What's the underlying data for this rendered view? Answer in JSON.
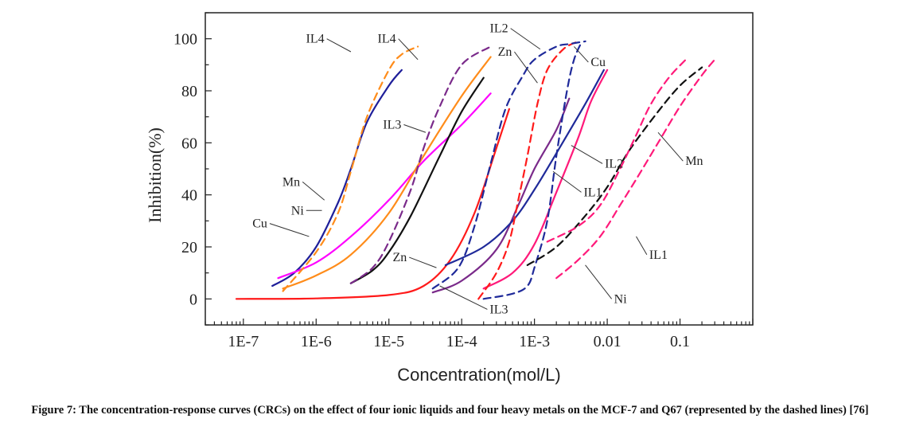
{
  "caption": "Figure 7: The concentration-response curves (CRCs) on the effect of four ionic liquids and four heavy metals on the MCF-7 and Q67 (represented by the dashed lines) [76]",
  "chart_data": {
    "type": "line",
    "title": "",
    "xlabel": "Concentration(mol/L)",
    "ylabel": "Inhibition(%)",
    "x_scale": "log",
    "xlim": [
      3e-08,
      1
    ],
    "ylim": [
      -10,
      110
    ],
    "x_ticks": [
      1e-07,
      1e-06,
      1e-05,
      0.0001,
      0.001,
      0.01,
      0.1
    ],
    "x_tick_labels": [
      "1E-7",
      "1E-6",
      "1E-5",
      "1E-4",
      "1E-3",
      "0.01",
      "0.1"
    ],
    "y_ticks": [
      0,
      20,
      40,
      60,
      80,
      100
    ],
    "y_tick_labels": [
      "0",
      "20",
      "40",
      "60",
      "80",
      "100"
    ],
    "grid": false,
    "series": [
      {
        "name": "Cu",
        "color": "#1f1f9a",
        "dashed": false,
        "x": [
          2.5e-07,
          5e-07,
          1e-06,
          2e-06,
          3e-06,
          5e-06,
          1e-05,
          1.5e-05
        ],
        "y": [
          5,
          10,
          20,
          37,
          50,
          68,
          82,
          88
        ]
      },
      {
        "name": "Mn",
        "color": "#ff00ff",
        "dashed": false,
        "x": [
          3e-07,
          1e-06,
          3e-06,
          1e-05,
          3e-05,
          0.0001,
          0.00025
        ],
        "y": [
          8,
          14,
          24,
          38,
          53,
          67,
          79
        ]
      },
      {
        "name": "IL4",
        "color": "#ff8c1a",
        "dashed": false,
        "x": [
          3.5e-07,
          1e-06,
          3e-06,
          1e-05,
          3e-05,
          0.0001,
          0.00025
        ],
        "y": [
          4,
          9,
          17,
          33,
          55,
          78,
          93
        ]
      },
      {
        "name": "Ni",
        "color": "#111111",
        "dashed": false,
        "x": [
          3e-06,
          6e-06,
          1e-05,
          2e-05,
          5e-05,
          0.0001,
          0.0002
        ],
        "y": [
          6,
          11,
          18,
          32,
          55,
          72,
          85
        ]
      },
      {
        "name": "Zn",
        "color": "#ff1a1a",
        "dashed": false,
        "x": [
          8e-08,
          1e-06,
          1e-05,
          3e-05,
          7e-05,
          0.00015,
          0.0003,
          0.00045
        ],
        "y": [
          0,
          0.2,
          1.5,
          5,
          15,
          33,
          58,
          73
        ]
      },
      {
        "name": "IL3",
        "color": "#7a2a8a",
        "dashed": false,
        "x": [
          4e-05,
          0.0001,
          0.0003,
          0.0006,
          0.001,
          0.002,
          0.003
        ],
        "y": [
          2.5,
          7,
          19,
          36,
          50,
          65,
          77
        ]
      },
      {
        "name": "IL2",
        "color": "#1f2a9a",
        "dashed": false,
        "x": [
          6e-05,
          0.0002,
          0.0005,
          0.001,
          0.002,
          0.005,
          0.009
        ],
        "y": [
          13,
          20,
          30,
          42,
          56,
          75,
          88
        ]
      },
      {
        "name": "IL1",
        "color": "#ff1a7a",
        "dashed": false,
        "x": [
          0.0002,
          0.0005,
          0.001,
          0.002,
          0.004,
          0.006,
          0.01
        ],
        "y": [
          4,
          10,
          21,
          41,
          62,
          76,
          88
        ]
      },
      {
        "name": "IL4",
        "color": "#ff8c1a",
        "dashed": true,
        "x": [
          3.5e-07,
          1e-06,
          2e-06,
          3e-06,
          5e-06,
          1e-05,
          1.5e-05,
          2.5e-05
        ],
        "y": [
          3,
          18,
          33,
          49,
          70,
          88,
          94,
          97
        ]
      },
      {
        "name": "IL3",
        "color": "#7a2a8a",
        "dashed": true,
        "x": [
          3e-06,
          6e-06,
          1e-05,
          2e-05,
          3e-05,
          5e-05,
          0.0001,
          0.00025
        ],
        "y": [
          6,
          12,
          22,
          42,
          58,
          74,
          90,
          97
        ]
      },
      {
        "name": "Zn",
        "color": "#ff1a1a",
        "dashed": true,
        "x": [
          0.00017,
          0.0003,
          0.00045,
          0.0006,
          0.0008,
          0.0011,
          0.0015,
          0.0025,
          0.004
        ],
        "y": [
          0,
          10,
          22,
          38,
          55,
          75,
          88,
          96,
          99
        ]
      },
      {
        "name": "IL2",
        "color": "#1f2a9a",
        "dashed": true,
        "x": [
          4e-05,
          9e-05,
          0.00015,
          0.00025,
          0.0004,
          0.0007,
          0.001,
          0.002,
          0.003,
          0.005
        ],
        "y": [
          4,
          12,
          28,
          52,
          73,
          86,
          92,
          97,
          98,
          99
        ]
      },
      {
        "name": "Cu",
        "color": "#1f2a9a",
        "dashed": true,
        "x": [
          0.0002,
          0.0005,
          0.0008,
          0.001,
          0.0015,
          0.002,
          0.0028,
          0.0035,
          0.0045
        ],
        "y": [
          0,
          2,
          5,
          12,
          30,
          55,
          80,
          92,
          99
        ]
      },
      {
        "name": "Ni",
        "color": "#111111",
        "dashed": true,
        "x": [
          0.0008,
          0.002,
          0.005,
          0.01,
          0.02,
          0.05,
          0.1,
          0.2
        ],
        "y": [
          13,
          20,
          32,
          43,
          57,
          72,
          82,
          89
        ]
      },
      {
        "name": "Mn",
        "color": "#ff1a7a",
        "dashed": true,
        "x": [
          0.0015,
          0.004,
          0.008,
          0.015,
          0.025,
          0.04,
          0.07,
          0.12
        ],
        "y": [
          22,
          28,
          36,
          50,
          63,
          75,
          85,
          92
        ]
      },
      {
        "name": "IL1",
        "color": "#ff1a7a",
        "dashed": true,
        "x": [
          0.002,
          0.004,
          0.008,
          0.015,
          0.025,
          0.05,
          0.1,
          0.2,
          0.3
        ],
        "y": [
          8,
          15,
          24,
          36,
          46,
          60,
          74,
          86,
          92
        ]
      }
    ],
    "annotations": [
      {
        "text": "Cu",
        "x": 2.3e-07,
        "y": 29
      },
      {
        "text": "Mn",
        "x": 6.5e-07,
        "y": 45
      },
      {
        "text": "Ni",
        "x": 7.3e-07,
        "y": 34
      },
      {
        "text": "IL4",
        "x": 1.4e-06,
        "y": 100
      },
      {
        "text": "IL4",
        "x": 1.35e-05,
        "y": 100
      },
      {
        "text": "IL3",
        "x": 1.6e-05,
        "y": 67
      },
      {
        "text": "Zn",
        "x": 1.9e-05,
        "y": 16
      },
      {
        "text": "IL2",
        "x": 0.00047,
        "y": 104
      },
      {
        "text": "Zn",
        "x": 0.00053,
        "y": 95
      },
      {
        "text": "Cu",
        "x": 0.0055,
        "y": 91
      },
      {
        "text": "IL2",
        "x": 0.0086,
        "y": 52
      },
      {
        "text": "IL1",
        "x": 0.0044,
        "y": 41
      },
      {
        "text": "Mn",
        "x": 0.11,
        "y": 53
      },
      {
        "text": "IL1",
        "x": 0.035,
        "y": 17
      },
      {
        "text": "Ni",
        "x": 0.0115,
        "y": 0
      },
      {
        "text": "IL3",
        "x": 0.000225,
        "y": -4
      }
    ]
  }
}
